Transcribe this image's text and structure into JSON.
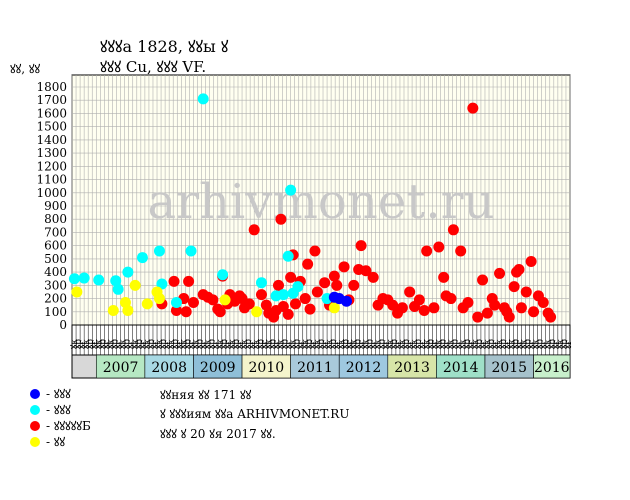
{
  "header": {
    "line1": "ꙋꙋꙋа 1828, ꙋꙋы ꙋ",
    "line2": "ꙋꙋꙋ Cu, ꙋꙋꙋ VF.",
    "unit": "ꙋꙋ, ꙋꙋ"
  },
  "watermark": "arhivmonet.ru",
  "chart_data": {
    "type": "scatter",
    "title": "",
    "ylim": [
      0,
      1800
    ],
    "ytick_step": 100,
    "grid": true,
    "legend_position": "bottom-left",
    "year_labels": [
      "2007",
      "2008",
      "2009",
      "2010",
      "2011",
      "2012",
      "2013",
      "2014",
      "2015",
      "2016"
    ],
    "year_colors": [
      "#b6e8c3",
      "#a8d9e4",
      "#8fbfd8",
      "#f4f4cc",
      "#a9c9da",
      "#9ec8e0",
      "#d7e5a8",
      "#9fe0c8",
      "#a6c2cc",
      "#c8f0cc"
    ],
    "quarter_labels": [
      "ꙋк",
      "ꙋр",
      "ꙋг",
      "ꙋк",
      "ꙋр",
      "ꙋг",
      "ꙋк",
      "ꙋр",
      "ꙋг",
      "ꙋк",
      "ꙋр",
      "ꙋг",
      "ꙋк",
      "ꙋр",
      "ꙋг",
      "ꙋк",
      "ꙋр",
      "ꙋг",
      "ꙋк",
      "ꙋр",
      "ꙋг",
      "ꙋк",
      "ꙋр",
      "ꙋг",
      "ꙋк",
      "ꙋр",
      "ꙋг",
      "ꙋк",
      "ꙋр",
      "ꙋг",
      "ꙋк",
      "ꙋр",
      "ꙋг",
      "ꙋк",
      "ꙋр",
      "ꙋг",
      "ꙋк",
      "ꙋр",
      "ꙋг",
      "ꙋк",
      "ꙋр",
      "ꙋг",
      "ꙋк",
      "ꙋр",
      "ꙋг",
      "ꙋк",
      "ꙋр",
      "ꙋг",
      "ꙋк",
      "ꙋр",
      "ꙋг",
      "ꙋк",
      "ꙋр",
      "ꙋг",
      "ꙋк",
      "ꙋр",
      "ꙋг",
      "ꙋк",
      "ꙋр",
      "ꙋг",
      "ꙋк",
      "ꙋр",
      "ꙋг",
      "ꙋк",
      "ꙋр",
      "ꙋг",
      "ꙋк",
      "ꙋр",
      "ꙋг",
      "ꙋк",
      "ꙋр",
      "ꙋг",
      "ꙋк",
      "ꙋр",
      "ꙋг",
      "ꙋк",
      "ꙋр",
      "ꙋг",
      "ꙋк",
      "ꙋр",
      "ꙋг",
      "ꙋк",
      "ꙋр",
      "ꙋг",
      "ꙋк",
      "ꙋр",
      "ꙋг",
      "ꙋк",
      "ꙋр",
      "ꙋг",
      "ꙋк",
      "ꙋр",
      "ꙋг",
      "ꙋк",
      "ꙋр",
      "ꙋг",
      "ꙋк",
      "ꙋр",
      "ꙋг",
      "ꙋк",
      "ꙋр",
      "ꙋг",
      "ꙋк",
      "ꙋр",
      "ꙋг",
      "ꙋк",
      "ꙋр",
      "ꙋг",
      "ꙋк",
      "ꙋр",
      "ꙋг",
      "ꙋк",
      "ꙋр",
      "ꙋг",
      "ꙋк",
      "ꙋр",
      "ꙋг",
      "ꙋк",
      "ꙋр",
      "ꙋг",
      "ꙋк",
      "ꙋр",
      "ꙋг"
    ],
    "series": [
      {
        "name": "ꙋꙋꙋ",
        "color": "#0000ff",
        "points": [
          [
            2011.9,
            210
          ],
          [
            2012.0,
            200
          ],
          [
            2012.15,
            180
          ]
        ]
      },
      {
        "name": "ꙋꙋꙋ",
        "color": "#00ffff",
        "points": [
          [
            2006.55,
            350
          ],
          [
            2006.75,
            355
          ],
          [
            2007.05,
            340
          ],
          [
            2007.4,
            335
          ],
          [
            2007.45,
            270
          ],
          [
            2007.65,
            400
          ],
          [
            2007.95,
            510
          ],
          [
            2008.3,
            560
          ],
          [
            2008.35,
            310
          ],
          [
            2008.65,
            170
          ],
          [
            2008.95,
            560
          ],
          [
            2009.2,
            1710
          ],
          [
            2009.6,
            380
          ],
          [
            2010.4,
            320
          ],
          [
            2010.7,
            220
          ],
          [
            2010.85,
            230
          ],
          [
            2010.95,
            520
          ],
          [
            2011.0,
            1020
          ],
          [
            2011.05,
            240
          ],
          [
            2011.15,
            290
          ],
          [
            2011.75,
            200
          ]
        ]
      },
      {
        "name": "ꙋꙋꙋꙋꙋБ",
        "color": "#ff0000",
        "points": [
          [
            2008.35,
            160
          ],
          [
            2008.6,
            330
          ],
          [
            2008.65,
            110
          ],
          [
            2008.8,
            200
          ],
          [
            2008.85,
            100
          ],
          [
            2008.9,
            330
          ],
          [
            2009.0,
            170
          ],
          [
            2009.2,
            230
          ],
          [
            2009.3,
            210
          ],
          [
            2009.4,
            190
          ],
          [
            2009.5,
            120
          ],
          [
            2009.55,
            100
          ],
          [
            2009.6,
            370
          ],
          [
            2009.7,
            160
          ],
          [
            2009.75,
            230
          ],
          [
            2009.85,
            180
          ],
          [
            2009.95,
            220
          ],
          [
            2010.0,
            200
          ],
          [
            2010.05,
            130
          ],
          [
            2010.15,
            160
          ],
          [
            2010.25,
            720
          ],
          [
            2010.4,
            230
          ],
          [
            2010.5,
            150
          ],
          [
            2010.55,
            90
          ],
          [
            2010.65,
            60
          ],
          [
            2010.7,
            110
          ],
          [
            2010.75,
            300
          ],
          [
            2010.8,
            800
          ],
          [
            2010.85,
            140
          ],
          [
            2010.95,
            80
          ],
          [
            2011.0,
            360
          ],
          [
            2011.05,
            530
          ],
          [
            2011.1,
            160
          ],
          [
            2011.2,
            330
          ],
          [
            2011.3,
            200
          ],
          [
            2011.35,
            460
          ],
          [
            2011.4,
            120
          ],
          [
            2011.5,
            560
          ],
          [
            2011.55,
            250
          ],
          [
            2011.7,
            320
          ],
          [
            2011.8,
            150
          ],
          [
            2011.9,
            370
          ],
          [
            2011.95,
            300
          ],
          [
            2012.1,
            440
          ],
          [
            2012.2,
            190
          ],
          [
            2012.3,
            300
          ],
          [
            2012.4,
            420
          ],
          [
            2012.45,
            600
          ],
          [
            2012.55,
            410
          ],
          [
            2012.7,
            360
          ],
          [
            2012.8,
            150
          ],
          [
            2012.9,
            200
          ],
          [
            2013.0,
            190
          ],
          [
            2013.1,
            150
          ],
          [
            2013.2,
            90
          ],
          [
            2013.3,
            130
          ],
          [
            2013.45,
            250
          ],
          [
            2013.55,
            140
          ],
          [
            2013.65,
            190
          ],
          [
            2013.75,
            110
          ],
          [
            2013.8,
            560
          ],
          [
            2013.95,
            130
          ],
          [
            2014.05,
            590
          ],
          [
            2014.15,
            360
          ],
          [
            2014.2,
            220
          ],
          [
            2014.3,
            200
          ],
          [
            2014.35,
            720
          ],
          [
            2014.5,
            560
          ],
          [
            2014.55,
            130
          ],
          [
            2014.65,
            170
          ],
          [
            2014.75,
            1640
          ],
          [
            2014.85,
            60
          ],
          [
            2014.95,
            340
          ],
          [
            2015.05,
            90
          ],
          [
            2015.15,
            200
          ],
          [
            2015.2,
            150
          ],
          [
            2015.3,
            390
          ],
          [
            2015.4,
            130
          ],
          [
            2015.45,
            100
          ],
          [
            2015.5,
            60
          ],
          [
            2015.6,
            290
          ],
          [
            2015.65,
            400
          ],
          [
            2015.7,
            420
          ],
          [
            2015.75,
            130
          ],
          [
            2015.85,
            250
          ],
          [
            2015.95,
            480
          ],
          [
            2016.0,
            100
          ],
          [
            2016.1,
            220
          ],
          [
            2016.2,
            170
          ],
          [
            2016.3,
            90
          ],
          [
            2016.35,
            60
          ]
        ]
      },
      {
        "name": "ꙋꙋ",
        "color": "#ffff00",
        "points": [
          [
            2006.6,
            250
          ],
          [
            2007.35,
            110
          ],
          [
            2007.6,
            170
          ],
          [
            2007.65,
            110
          ],
          [
            2007.8,
            300
          ],
          [
            2008.05,
            160
          ],
          [
            2008.25,
            250
          ],
          [
            2008.3,
            200
          ],
          [
            2009.65,
            190
          ],
          [
            2010.3,
            100
          ],
          [
            2011.9,
            130
          ]
        ]
      }
    ],
    "legend_labels": [
      "- ꙋꙋꙋ",
      "- ꙋꙋꙋ",
      "- ꙋꙋꙋꙋꙋБ",
      "- ꙋꙋ"
    ]
  },
  "notes": {
    "line1": "ꙋꙋняя ꙋꙋ 171 ꙋꙋ",
    "line2": "ꙋ ꙋꙋꙋиям ꙋꙋа ARHIVMONET.RU",
    "line3": "ꙋꙋꙋ ꙋ 20 ꙋя 2017 ꙋꙋ."
  }
}
